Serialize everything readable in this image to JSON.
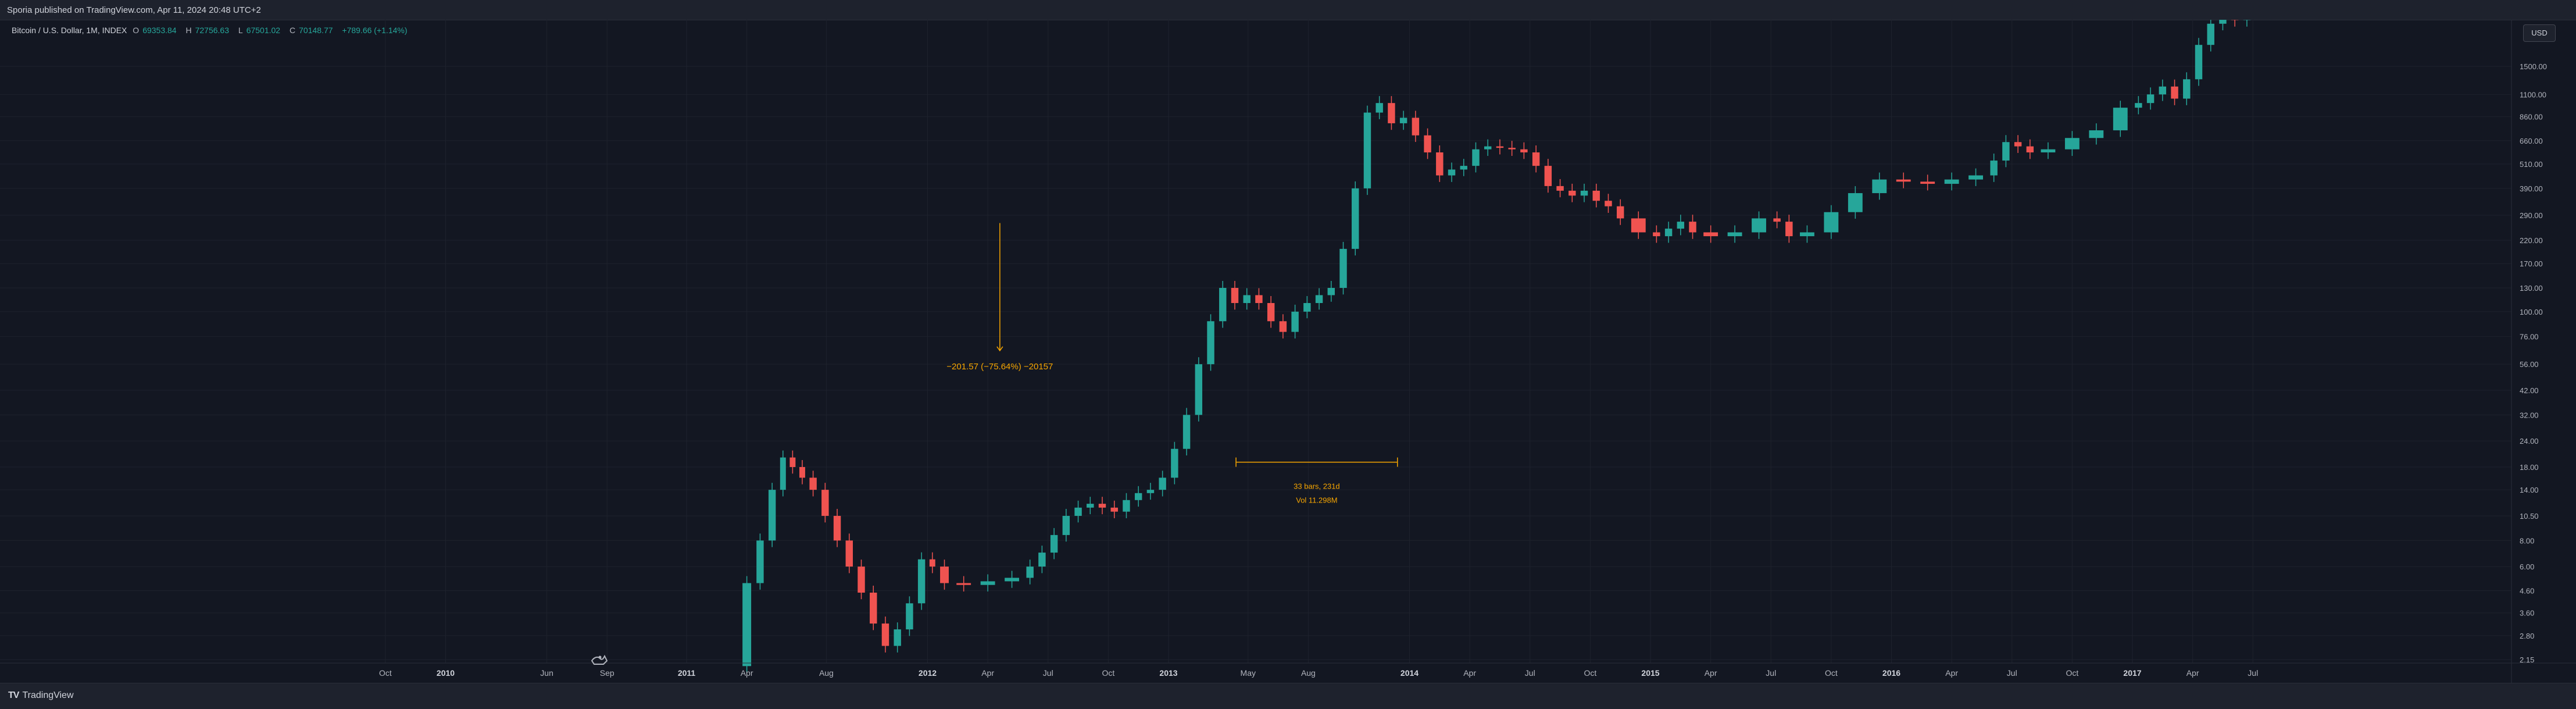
{
  "header": {
    "publisher_text": "Sporia published on TradingView.com, Apr 11, 2024 20:48 UTC+2"
  },
  "legend": {
    "symbol": "Bitcoin / U.S. Dollar, 1M, INDEX",
    "open_label": "O",
    "open": "69353.84",
    "high_label": "H",
    "high": "72756.63",
    "low_label": "L",
    "low": "67501.02",
    "close_label": "C",
    "close": "70148.77",
    "change": "+789.66 (+1.14%)"
  },
  "price_axis": {
    "currency": "USD"
  },
  "footer": {
    "brand": "TradingView",
    "brand_mark": "TV"
  },
  "colors": {
    "background": "#131722",
    "up": "#26a69a",
    "down": "#ef5350",
    "tool": "#f7a600",
    "grid": "#1e222d"
  },
  "chart_data": {
    "type": "candlestick",
    "scale": "log",
    "grid": true,
    "price_ticks": [
      2.15,
      2.8,
      3.6,
      4.6,
      6.0,
      8.0,
      10.5,
      14.0,
      18.0,
      24.0,
      32.0,
      42.0,
      56.0,
      76.0,
      100.0,
      130.0,
      170.0,
      220.0,
      290.0,
      390.0,
      510.0,
      660.0,
      860.0,
      1100.0,
      1500.0
    ],
    "time_ticks": [
      {
        "label": "Oct",
        "t": 2009.75,
        "bold": false
      },
      {
        "label": "2010",
        "t": 2010.0,
        "bold": true
      },
      {
        "label": "Jun",
        "t": 2010.42,
        "bold": false
      },
      {
        "label": "Sep",
        "t": 2010.67,
        "bold": false
      },
      {
        "label": "2011",
        "t": 2011.0,
        "bold": true
      },
      {
        "label": "Apr",
        "t": 2011.25,
        "bold": false
      },
      {
        "label": "Aug",
        "t": 2011.58,
        "bold": false
      },
      {
        "label": "2012",
        "t": 2012.0,
        "bold": true
      },
      {
        "label": "Apr",
        "t": 2012.25,
        "bold": false
      },
      {
        "label": "Jul",
        "t": 2012.5,
        "bold": false
      },
      {
        "label": "Oct",
        "t": 2012.75,
        "bold": false
      },
      {
        "label": "2013",
        "t": 2013.0,
        "bold": true
      },
      {
        "label": "May",
        "t": 2013.33,
        "bold": false
      },
      {
        "label": "Aug",
        "t": 2013.58,
        "bold": false
      },
      {
        "label": "2014",
        "t": 2014.0,
        "bold": true
      },
      {
        "label": "Apr",
        "t": 2014.25,
        "bold": false
      },
      {
        "label": "Jul",
        "t": 2014.5,
        "bold": false
      },
      {
        "label": "Oct",
        "t": 2014.75,
        "bold": false
      },
      {
        "label": "2015",
        "t": 2015.0,
        "bold": true
      },
      {
        "label": "Apr",
        "t": 2015.25,
        "bold": false
      },
      {
        "label": "Jul",
        "t": 2015.5,
        "bold": false
      },
      {
        "label": "Oct",
        "t": 2015.75,
        "bold": false
      },
      {
        "label": "2016",
        "t": 2016.0,
        "bold": true
      },
      {
        "label": "Apr",
        "t": 2016.25,
        "bold": false
      },
      {
        "label": "Jul",
        "t": 2016.5,
        "bold": false
      },
      {
        "label": "Oct",
        "t": 2016.75,
        "bold": false
      },
      {
        "label": "2017",
        "t": 2017.0,
        "bold": true
      },
      {
        "label": "Apr",
        "t": 2017.25,
        "bold": false
      },
      {
        "label": "Jul",
        "t": 2017.5,
        "bold": false
      }
    ],
    "price_path": [
      [
        2011.22,
        2.0
      ],
      [
        2011.28,
        5.0
      ],
      [
        2011.33,
        8.0
      ],
      [
        2011.38,
        14.0
      ],
      [
        2011.42,
        20.0
      ],
      [
        2011.46,
        18.0
      ],
      [
        2011.5,
        16.0
      ],
      [
        2011.55,
        14.0
      ],
      [
        2011.6,
        10.5
      ],
      [
        2011.65,
        8.0
      ],
      [
        2011.7,
        6.0
      ],
      [
        2011.75,
        4.5
      ],
      [
        2011.8,
        3.2
      ],
      [
        2011.85,
        2.5
      ],
      [
        2011.9,
        3.0
      ],
      [
        2011.95,
        4.0
      ],
      [
        2012.0,
        6.5
      ],
      [
        2012.04,
        6.0
      ],
      [
        2012.1,
        5.0
      ],
      [
        2012.2,
        4.9
      ],
      [
        2012.3,
        5.1
      ],
      [
        2012.4,
        5.3
      ],
      [
        2012.45,
        6.0
      ],
      [
        2012.5,
        7.0
      ],
      [
        2012.55,
        8.5
      ],
      [
        2012.6,
        10.5
      ],
      [
        2012.65,
        11.5
      ],
      [
        2012.7,
        12.0
      ],
      [
        2012.75,
        11.5
      ],
      [
        2012.8,
        11.0
      ],
      [
        2012.85,
        12.5
      ],
      [
        2012.9,
        13.5
      ],
      [
        2012.95,
        14.0
      ],
      [
        2013.0,
        16.0
      ],
      [
        2013.05,
        22.0
      ],
      [
        2013.1,
        32.0
      ],
      [
        2013.15,
        56.0
      ],
      [
        2013.2,
        90.0
      ],
      [
        2013.25,
        130.0
      ],
      [
        2013.3,
        110.0
      ],
      [
        2013.35,
        120.0
      ],
      [
        2013.4,
        110.0
      ],
      [
        2013.45,
        90.0
      ],
      [
        2013.5,
        80.0
      ],
      [
        2013.55,
        100.0
      ],
      [
        2013.6,
        110.0
      ],
      [
        2013.65,
        120.0
      ],
      [
        2013.7,
        130.0
      ],
      [
        2013.75,
        200.0
      ],
      [
        2013.8,
        390.0
      ],
      [
        2013.85,
        900.0
      ],
      [
        2013.9,
        1000.0
      ],
      [
        2013.95,
        800.0
      ],
      [
        2014.0,
        850.0
      ],
      [
        2014.05,
        700.0
      ],
      [
        2014.1,
        580.0
      ],
      [
        2014.15,
        450.0
      ],
      [
        2014.2,
        480.0
      ],
      [
        2014.25,
        500.0
      ],
      [
        2014.3,
        600.0
      ],
      [
        2014.35,
        620.0
      ],
      [
        2014.4,
        610.0
      ],
      [
        2014.45,
        600.0
      ],
      [
        2014.5,
        580.0
      ],
      [
        2014.55,
        500.0
      ],
      [
        2014.6,
        400.0
      ],
      [
        2014.65,
        380.0
      ],
      [
        2014.7,
        360.0
      ],
      [
        2014.75,
        380.0
      ],
      [
        2014.8,
        340.0
      ],
      [
        2014.85,
        320.0
      ],
      [
        2014.9,
        280.0
      ],
      [
        2015.0,
        240.0
      ],
      [
        2015.05,
        230.0
      ],
      [
        2015.1,
        250.0
      ],
      [
        2015.15,
        270.0
      ],
      [
        2015.2,
        240.0
      ],
      [
        2015.3,
        230.0
      ],
      [
        2015.4,
        240.0
      ],
      [
        2015.5,
        280.0
      ],
      [
        2015.55,
        270.0
      ],
      [
        2015.6,
        230.0
      ],
      [
        2015.7,
        240.0
      ],
      [
        2015.8,
        300.0
      ],
      [
        2015.9,
        370.0
      ],
      [
        2016.0,
        430.0
      ],
      [
        2016.1,
        420.0
      ],
      [
        2016.2,
        410.0
      ],
      [
        2016.3,
        430.0
      ],
      [
        2016.4,
        450.0
      ],
      [
        2016.45,
        530.0
      ],
      [
        2016.5,
        650.0
      ],
      [
        2016.55,
        620.0
      ],
      [
        2016.6,
        580.0
      ],
      [
        2016.7,
        600.0
      ],
      [
        2016.8,
        680.0
      ],
      [
        2016.9,
        740.0
      ],
      [
        2017.0,
        950.0
      ],
      [
        2017.05,
        1000.0
      ],
      [
        2017.1,
        1100.0
      ],
      [
        2017.15,
        1200.0
      ],
      [
        2017.2,
        1050.0
      ],
      [
        2017.25,
        1300.0
      ],
      [
        2017.3,
        1900.0
      ],
      [
        2017.35,
        2400.0
      ],
      [
        2017.4,
        2600.0
      ],
      [
        2017.45,
        2500.0
      ],
      [
        2017.5,
        2700.0
      ]
    ],
    "annotations": {
      "range_measure": {
        "label": "−201.57 (−75.64%) −20157",
        "t": 2012.3,
        "top_price": 266.0,
        "bottom_price": 65.0
      },
      "date_range": {
        "line1": "33 bars, 231d",
        "line2": "Vol 11.298M",
        "t_start": 2013.28,
        "t_end": 2013.95,
        "price": 19.0
      }
    }
  }
}
